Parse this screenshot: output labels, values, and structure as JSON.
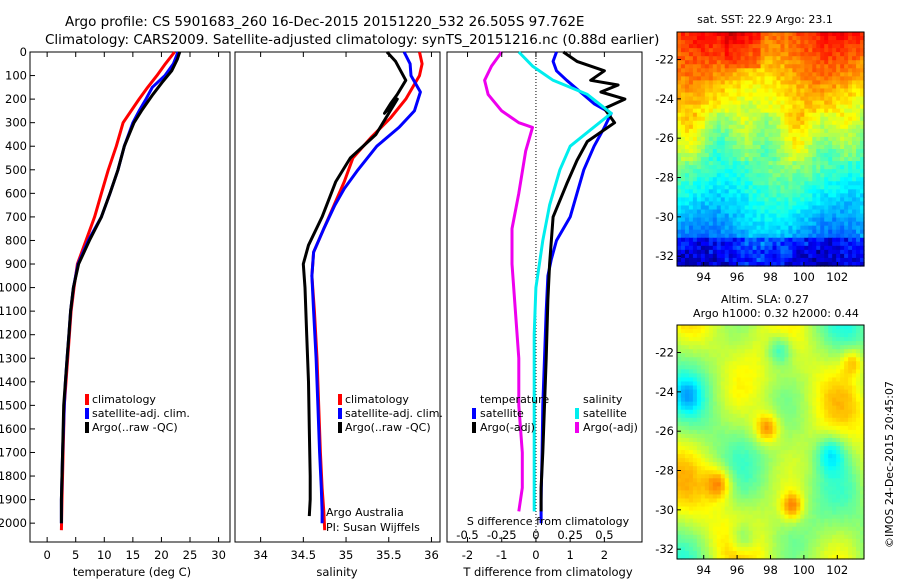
{
  "title": {
    "line1": "Argo profile: CS 5901683_260 16-Dec-2015 20151220_532 26.505S 97.762E",
    "line2": "Climatology: CARS2009. Satellite-adjusted climatology: synTS_20151216.nc (0.88d earlier)"
  },
  "colors": {
    "climatology": "#ff0000",
    "satellite": "#0000ff",
    "argo": "#000000",
    "sat_salinity": "#00eeee",
    "argo_salinity": "#ee00ee"
  },
  "panels": {
    "temperature": {
      "xlabel": "temperature (deg C)",
      "legend": [
        "climatology",
        "satellite-adj. clim.",
        "Argo(..raw -QC)"
      ]
    },
    "salinity": {
      "xlabel": "salinity",
      "legend": [
        "climatology",
        "satellite-adj. clim.",
        "Argo(..raw -QC)"
      ],
      "note1": "Argo Australia",
      "note2": "PI: Susan Wijffels"
    },
    "difference": {
      "top_xlabel": "S difference from climatology",
      "xlabel": "T difference from climatology",
      "legend_t_header": "temperature",
      "legend_t": [
        "satellite",
        "Argo(-adj)"
      ],
      "legend_s_header": "salinity",
      "legend_s": [
        "satellite",
        "Argo(-adj)"
      ]
    },
    "sst_map": {
      "title": "sat. SST: 22.9  Argo: 23.1"
    },
    "sla_map": {
      "title1": "Altim. SLA: 0.27",
      "title2": "Argo h1000: 0.32 h2000: 0.44"
    }
  },
  "credit": "©IMOS 24-Dec-2015 20:45:07",
  "chart_data": [
    {
      "type": "line",
      "name": "temperature profile",
      "xlabel": "temperature (deg C)",
      "ylabel": "",
      "xlim": [
        -3,
        32
      ],
      "ylim": [
        2080,
        0
      ],
      "xticks": [
        "0",
        "5",
        "10",
        "15",
        "20",
        "25",
        "30"
      ],
      "yticks": [
        "0",
        "100",
        "200",
        "300",
        "400",
        "500",
        "600",
        "700",
        "800",
        "900",
        "1000",
        "1100",
        "1200",
        "1300",
        "1400",
        "1500",
        "1600",
        "1700",
        "1800",
        "1900",
        "2000"
      ],
      "series": [
        {
          "name": "climatology",
          "color": "#ff0000",
          "x": [
            22.3,
            20.7,
            19.2,
            17.6,
            16.1,
            14.7,
            13.3,
            12.1,
            10.7,
            9.5,
            8.3,
            6.8,
            5.3,
            4.7,
            4.2,
            3.9,
            3.6,
            3.3,
            3.0,
            2.8,
            2.6,
            2.5
          ],
          "y": [
            0,
            50,
            100,
            150,
            200,
            250,
            300,
            400,
            500,
            600,
            700,
            800,
            900,
            1000,
            1100,
            1200,
            1300,
            1400,
            1500,
            1700,
            1900,
            2030
          ]
        },
        {
          "name": "satellite-adj. clim.",
          "color": "#0000ff",
          "x": [
            22.9,
            22.1,
            20.6,
            18.4,
            17.3,
            16.1,
            15.0,
            13.5,
            12.4,
            11.0,
            9.5,
            7.2,
            5.4,
            4.6,
            4.1,
            3.8,
            3.5,
            3.2,
            3.0,
            2.7,
            2.5,
            2.5
          ],
          "y": [
            0,
            50,
            100,
            150,
            200,
            250,
            300,
            400,
            500,
            600,
            700,
            800,
            900,
            1000,
            1100,
            1200,
            1300,
            1400,
            1500,
            1700,
            1900,
            2000
          ]
        },
        {
          "name": "Argo(..raw -QC)",
          "color": "#000000",
          "x": [
            23.2,
            22.8,
            21.8,
            20.1,
            18.5,
            16.5,
            15.2,
            13.5,
            12.4,
            11.0,
            9.5,
            7.4,
            5.5,
            4.6,
            4.1,
            3.8,
            3.5,
            3.2,
            2.9,
            2.7,
            2.5,
            2.5
          ],
          "y": [
            0,
            30,
            80,
            130,
            180,
            250,
            300,
            400,
            500,
            600,
            700,
            800,
            900,
            1000,
            1100,
            1200,
            1300,
            1400,
            1500,
            1700,
            1900,
            2000
          ]
        }
      ]
    },
    {
      "type": "line",
      "name": "salinity profile",
      "xlabel": "salinity",
      "ylabel": "",
      "xlim": [
        33.7,
        36.1
      ],
      "ylim": [
        2080,
        0
      ],
      "xticks": [
        "34",
        "34.5",
        "35",
        "35.5",
        "36"
      ],
      "series": [
        {
          "name": "climatology",
          "color": "#ff0000",
          "x": [
            35.86,
            35.89,
            35.86,
            35.78,
            35.7,
            35.52,
            35.3,
            35.08,
            34.98,
            34.86,
            34.74,
            34.62,
            34.6,
            34.63,
            34.66,
            34.68,
            34.7,
            34.72,
            34.74,
            34.75
          ],
          "y": [
            0,
            50,
            100,
            150,
            200,
            280,
            360,
            450,
            550,
            650,
            750,
            850,
            950,
            1100,
            1300,
            1500,
            1700,
            1850,
            1950,
            2030
          ]
        },
        {
          "name": "satellite-adj. clim.",
          "color": "#0000ff",
          "x": [
            35.68,
            35.75,
            35.76,
            35.87,
            35.8,
            35.62,
            35.36,
            35.14,
            34.98,
            34.87,
            34.74,
            34.62,
            34.6,
            34.62,
            34.65,
            34.67,
            34.69,
            34.71,
            34.72,
            34.72
          ],
          "y": [
            0,
            50,
            100,
            170,
            250,
            320,
            400,
            500,
            580,
            650,
            750,
            850,
            950,
            1100,
            1300,
            1500,
            1700,
            1850,
            1950,
            2000
          ]
        },
        {
          "name": "Argo(..raw -QC)",
          "color": "#000000",
          "x": [
            35.48,
            35.58,
            35.7,
            35.6,
            35.52,
            35.45,
            35.6,
            35.35,
            35.05,
            34.88,
            34.72,
            34.56,
            34.5,
            34.52,
            34.54,
            34.56,
            34.57,
            34.58,
            34.58,
            34.57
          ],
          "y": [
            0,
            40,
            120,
            180,
            220,
            260,
            200,
            350,
            450,
            550,
            700,
            820,
            900,
            1000,
            1200,
            1400,
            1600,
            1800,
            1900,
            1970
          ]
        }
      ]
    },
    {
      "type": "line",
      "name": "difference from climatology",
      "xlabel": "T difference from climatology",
      "top_xlabel": "S difference from climatology",
      "xlim": [
        -2.6,
        3.1
      ],
      "ylim": [
        2080,
        0
      ],
      "xticks": [
        "-2",
        "-1",
        "0",
        "1",
        "2"
      ],
      "top_xticks": [
        "-0.5",
        "-0.25",
        "0",
        "0.25",
        "0.5"
      ],
      "series": [
        {
          "name": "temperature satellite",
          "color": "#0000ff",
          "x": [
            0.6,
            0.5,
            0.6,
            0.9,
            1.3,
            1.7,
            2.2,
            2.0,
            1.7,
            1.4,
            1.2,
            1.0,
            0.6,
            0.45,
            0.35,
            0.3,
            0.25,
            0.2,
            0.18,
            0.15,
            0.15
          ],
          "y": [
            0,
            40,
            80,
            120,
            170,
            220,
            260,
            320,
            400,
            500,
            600,
            700,
            800,
            880,
            950,
            1100,
            1300,
            1500,
            1700,
            1900,
            2000
          ]
        },
        {
          "name": "temperature Argo(-adj)",
          "color": "#000000",
          "x": [
            0.8,
            1.2,
            2.0,
            1.6,
            2.4,
            1.9,
            2.6,
            2.0,
            2.3,
            1.5,
            1.2,
            0.9,
            0.5,
            0.4,
            0.35,
            0.3,
            0.25,
            0.2,
            0.15,
            0.15
          ],
          "y": [
            0,
            40,
            80,
            120,
            140,
            170,
            200,
            240,
            300,
            380,
            460,
            560,
            700,
            900,
            1050,
            1300,
            1500,
            1700,
            1850,
            1950
          ]
        },
        {
          "name": "salinity satellite",
          "color": "#00eeee",
          "x": [
            -0.5,
            -0.1,
            0.5,
            1.5,
            2.2,
            1.6,
            1.0,
            0.7,
            0.4,
            0.2,
            0.1,
            0.0,
            -0.05,
            -0.05,
            -0.05,
            -0.05
          ],
          "y": [
            0,
            60,
            120,
            180,
            260,
            330,
            400,
            500,
            650,
            800,
            900,
            1000,
            1200,
            1500,
            1800,
            1950
          ]
        },
        {
          "name": "salinity Argo(-adj)",
          "color": "#ee00ee",
          "x": [
            -1.0,
            -1.3,
            -1.5,
            -1.4,
            -1.0,
            -0.5,
            -0.1,
            -0.3,
            -0.5,
            -0.7,
            -0.7,
            -0.6,
            -0.5,
            -0.5,
            -0.4,
            -0.4,
            -0.5
          ],
          "y": [
            0,
            60,
            120,
            180,
            250,
            300,
            320,
            420,
            600,
            750,
            900,
            1100,
            1300,
            1500,
            1700,
            1850,
            1950
          ]
        }
      ]
    },
    {
      "type": "heatmap",
      "name": "sat. SST map",
      "title": "sat. SST: 22.9  Argo: 23.1",
      "xlim": [
        92.4,
        103.6
      ],
      "ylim": [
        -32.5,
        -20.6
      ],
      "xticks": [
        "94",
        "96",
        "98",
        "100",
        "102"
      ],
      "yticks": [
        "-22",
        "-24",
        "-26",
        "-28",
        "-30",
        "-32"
      ]
    },
    {
      "type": "heatmap",
      "name": "altimetry SLA map",
      "title": "Altim. SLA: 0.27",
      "xlim": [
        92.4,
        103.6
      ],
      "ylim": [
        -32.5,
        -20.6
      ],
      "xticks": [
        "94",
        "96",
        "98",
        "100",
        "102"
      ],
      "yticks": [
        "-22",
        "-24",
        "-26",
        "-28",
        "-30",
        "-32"
      ]
    }
  ]
}
